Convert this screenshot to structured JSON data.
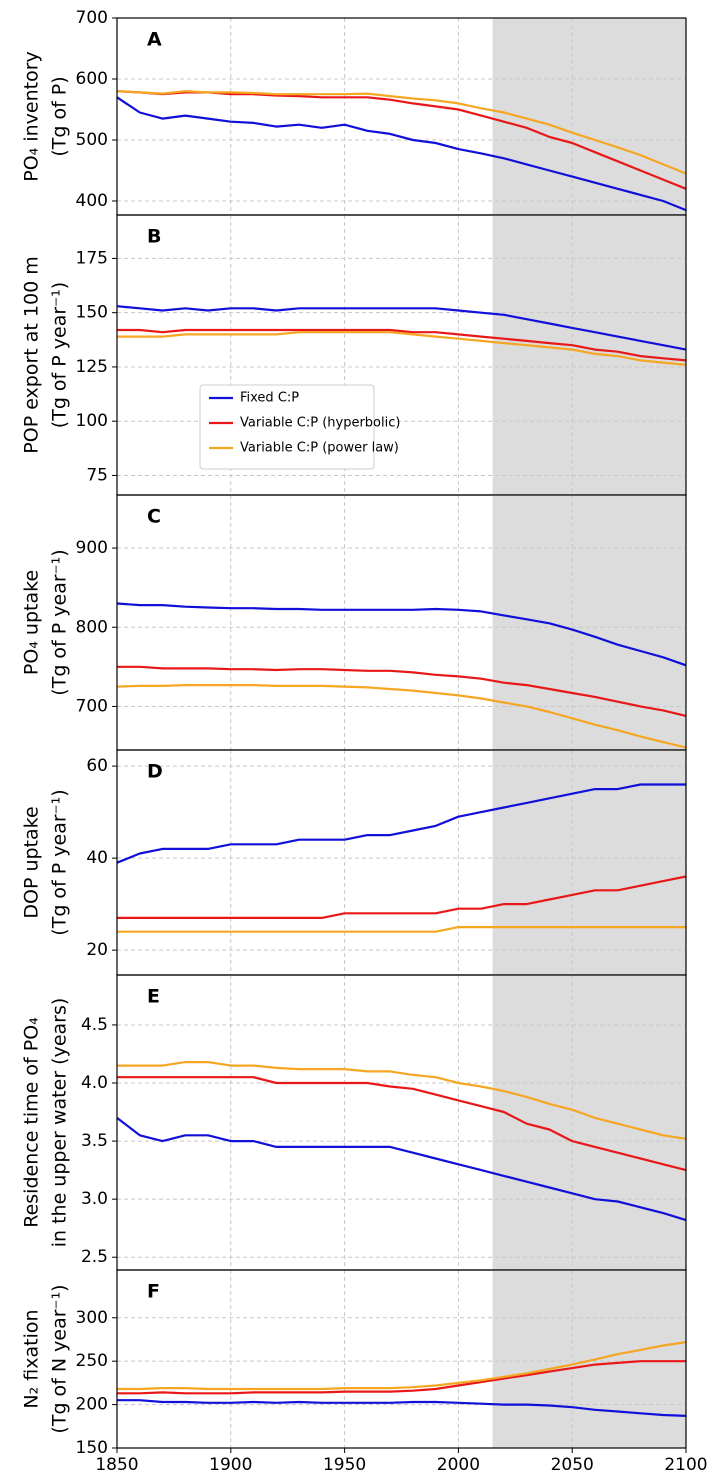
{
  "chart_data": [
    {
      "type": "line",
      "panel_label": "A",
      "ylabel": [
        "PO₄ inventory",
        "(Tg of P)"
      ],
      "x": [
        1850,
        1860,
        1870,
        1880,
        1890,
        1900,
        1910,
        1920,
        1930,
        1940,
        1950,
        1960,
        1970,
        1980,
        1990,
        2000,
        2010,
        2020,
        2030,
        2040,
        2050,
        2060,
        2070,
        2080,
        2090,
        2100
      ],
      "xlim": [
        1850,
        2100
      ],
      "xticks": [
        1850,
        1900,
        1950,
        2000,
        2050,
        2100
      ],
      "ylim": [
        377,
        700
      ],
      "yticks": [
        400,
        500,
        600,
        700
      ],
      "grid": true,
      "shaded_xrange": [
        2015,
        2100
      ],
      "series": [
        {
          "color": "#1010d8",
          "values": [
            570,
            545,
            535,
            540,
            535,
            530,
            528,
            522,
            525,
            520,
            525,
            515,
            510,
            500,
            495,
            485,
            478,
            470,
            460,
            450,
            440,
            430,
            420,
            410,
            400,
            385
          ]
        },
        {
          "color": "#e81818",
          "values": [
            580,
            578,
            575,
            578,
            578,
            575,
            575,
            573,
            572,
            570,
            570,
            570,
            566,
            560,
            555,
            550,
            540,
            530,
            520,
            505,
            495,
            480,
            465,
            450,
            435,
            420
          ]
        },
        {
          "color": "#f5a623",
          "values": [
            580,
            578,
            576,
            580,
            578,
            578,
            577,
            575,
            575,
            575,
            575,
            576,
            572,
            568,
            565,
            560,
            552,
            545,
            535,
            525,
            512,
            500,
            488,
            475,
            460,
            445
          ]
        }
      ]
    },
    {
      "type": "line",
      "panel_label": "B",
      "ylabel": [
        "POP export at 100 m",
        "(Tg of P year⁻¹)"
      ],
      "x": [
        1850,
        1860,
        1870,
        1880,
        1890,
        1900,
        1910,
        1920,
        1930,
        1940,
        1950,
        1960,
        1970,
        1980,
        1990,
        2000,
        2010,
        2020,
        2030,
        2040,
        2050,
        2060,
        2070,
        2080,
        2090,
        2100
      ],
      "xlim": [
        1850,
        2100
      ],
      "xticks": [
        1850,
        1900,
        1950,
        2000,
        2050,
        2100
      ],
      "ylim": [
        66,
        195
      ],
      "yticks": [
        75,
        100,
        125,
        150,
        175
      ],
      "grid": true,
      "shaded_xrange": [
        2015,
        2100
      ],
      "legend": "center-left",
      "series": [
        {
          "name": "Fixed C:P",
          "color": "#1010d8",
          "values": [
            153,
            152,
            151,
            152,
            151,
            152,
            152,
            151,
            152,
            152,
            152,
            152,
            152,
            152,
            152,
            151,
            150,
            149,
            147,
            145,
            143,
            141,
            139,
            137,
            135,
            133
          ]
        },
        {
          "name": "Variable C:P (hyperbolic)",
          "color": "#e81818",
          "values": [
            142,
            142,
            141,
            142,
            142,
            142,
            142,
            142,
            142,
            142,
            142,
            142,
            142,
            141,
            141,
            140,
            139,
            138,
            137,
            136,
            135,
            133,
            132,
            130,
            129,
            128
          ]
        },
        {
          "name": "Variable C:P (power law)",
          "color": "#f5a623",
          "values": [
            139,
            139,
            139,
            140,
            140,
            140,
            140,
            140,
            141,
            141,
            141,
            141,
            141,
            140,
            139,
            138,
            137,
            136,
            135,
            134,
            133,
            131,
            130,
            128,
            127,
            126
          ]
        }
      ]
    },
    {
      "type": "line",
      "panel_label": "C",
      "ylabel": [
        "PO₄ uptake",
        "(Tg of P year⁻¹)"
      ],
      "x": [
        1850,
        1860,
        1870,
        1880,
        1890,
        1900,
        1910,
        1920,
        1930,
        1940,
        1950,
        1960,
        1970,
        1980,
        1990,
        2000,
        2010,
        2020,
        2030,
        2040,
        2050,
        2060,
        2070,
        2080,
        2090,
        2100
      ],
      "xlim": [
        1850,
        2100
      ],
      "xticks": [
        1850,
        1900,
        1950,
        2000,
        2050,
        2100
      ],
      "ylim": [
        645,
        967
      ],
      "yticks": [
        700,
        800,
        900
      ],
      "grid": true,
      "shaded_xrange": [
        2015,
        2100
      ],
      "series": [
        {
          "color": "#1010d8",
          "values": [
            830,
            828,
            828,
            826,
            825,
            824,
            824,
            823,
            823,
            822,
            822,
            822,
            822,
            822,
            823,
            822,
            820,
            815,
            810,
            805,
            797,
            788,
            778,
            770,
            762,
            752
          ]
        },
        {
          "color": "#e81818",
          "values": [
            750,
            750,
            748,
            748,
            748,
            747,
            747,
            746,
            747,
            747,
            746,
            745,
            745,
            743,
            740,
            738,
            735,
            730,
            727,
            722,
            717,
            712,
            706,
            700,
            695,
            688
          ]
        },
        {
          "color": "#f5a623",
          "values": [
            725,
            726,
            726,
            727,
            727,
            727,
            727,
            726,
            726,
            726,
            725,
            724,
            722,
            720,
            717,
            714,
            710,
            705,
            700,
            693,
            685,
            677,
            670,
            662,
            655,
            648
          ]
        }
      ]
    },
    {
      "type": "line",
      "panel_label": "D",
      "ylabel": [
        "DOP uptake",
        "(Tg of P year⁻¹)"
      ],
      "x": [
        1850,
        1860,
        1870,
        1880,
        1890,
        1900,
        1910,
        1920,
        1930,
        1940,
        1950,
        1960,
        1970,
        1980,
        1990,
        2000,
        2010,
        2020,
        2030,
        2040,
        2050,
        2060,
        2070,
        2080,
        2090,
        2100
      ],
      "xlim": [
        1850,
        2100
      ],
      "xticks": [
        1850,
        1900,
        1950,
        2000,
        2050,
        2100
      ],
      "ylim": [
        14.6,
        63.5
      ],
      "yticks": [
        20,
        40,
        60
      ],
      "grid": true,
      "shaded_xrange": [
        2015,
        2100
      ],
      "series": [
        {
          "color": "#1010d8",
          "values": [
            39,
            41,
            42,
            42,
            42,
            43,
            43,
            43,
            44,
            44,
            44,
            45,
            45,
            46,
            47,
            49,
            50,
            51,
            52,
            53,
            54,
            55,
            55,
            56,
            56,
            56
          ]
        },
        {
          "color": "#e81818",
          "values": [
            27,
            27,
            27,
            27,
            27,
            27,
            27,
            27,
            27,
            27,
            28,
            28,
            28,
            28,
            28,
            29,
            29,
            30,
            30,
            31,
            32,
            33,
            33,
            34,
            35,
            36
          ]
        },
        {
          "color": "#f5a623",
          "values": [
            24,
            24,
            24,
            24,
            24,
            24,
            24,
            24,
            24,
            24,
            24,
            24,
            24,
            24,
            24,
            25,
            25,
            25,
            25,
            25,
            25,
            25,
            25,
            25,
            25,
            25
          ]
        }
      ]
    },
    {
      "type": "line",
      "panel_label": "E",
      "ylabel": [
        "Residence time of PO₄",
        "in the upper water (years)"
      ],
      "x": [
        1850,
        1860,
        1870,
        1880,
        1890,
        1900,
        1910,
        1920,
        1930,
        1940,
        1950,
        1960,
        1970,
        1980,
        1990,
        2000,
        2010,
        2020,
        2030,
        2040,
        2050,
        2060,
        2070,
        2080,
        2090,
        2100
      ],
      "xlim": [
        1850,
        2100
      ],
      "xticks": [
        1850,
        1900,
        1950,
        2000,
        2050,
        2100
      ],
      "ylim": [
        2.39,
        4.93
      ],
      "yticks": [
        2.5,
        {
          "value": 3,
          "label": "3.0"
        },
        3.5,
        {
          "value": 4,
          "label": "4.0"
        },
        4.5
      ],
      "grid": true,
      "shaded_xrange": [
        2015,
        2100
      ],
      "series": [
        {
          "color": "#1010d8",
          "values": [
            3.7,
            3.55,
            3.5,
            3.55,
            3.55,
            3.5,
            3.5,
            3.45,
            3.45,
            3.45,
            3.45,
            3.45,
            3.45,
            3.4,
            3.35,
            3.3,
            3.25,
            3.2,
            3.15,
            3.1,
            3.05,
            3.0,
            2.98,
            2.93,
            2.88,
            2.82
          ]
        },
        {
          "color": "#e81818",
          "values": [
            4.05,
            4.05,
            4.05,
            4.05,
            4.05,
            4.05,
            4.05,
            4.0,
            4.0,
            4.0,
            4.0,
            4.0,
            3.97,
            3.95,
            3.9,
            3.85,
            3.8,
            3.75,
            3.65,
            3.6,
            3.5,
            3.45,
            3.4,
            3.35,
            3.3,
            3.25
          ]
        },
        {
          "color": "#f5a623",
          "values": [
            4.15,
            4.15,
            4.15,
            4.18,
            4.18,
            4.15,
            4.15,
            4.13,
            4.12,
            4.12,
            4.12,
            4.1,
            4.1,
            4.07,
            4.05,
            4.0,
            3.97,
            3.93,
            3.88,
            3.82,
            3.77,
            3.7,
            3.65,
            3.6,
            3.55,
            3.52
          ]
        }
      ]
    },
    {
      "type": "line",
      "panel_label": "F",
      "ylabel": [
        "N₂ fixation",
        "(Tg of N year⁻¹)"
      ],
      "x": [
        1850,
        1860,
        1870,
        1880,
        1890,
        1900,
        1910,
        1920,
        1930,
        1940,
        1950,
        1960,
        1970,
        1980,
        1990,
        2000,
        2010,
        2020,
        2030,
        2040,
        2050,
        2060,
        2070,
        2080,
        2090,
        2100
      ],
      "xlim": [
        1850,
        2100
      ],
      "xticks": [
        1850,
        1900,
        1950,
        2000,
        2050,
        2100
      ],
      "xtick_labels_shown": true,
      "ylim": [
        150,
        355
      ],
      "yticks": [
        150,
        200,
        250,
        300
      ],
      "grid": true,
      "shaded_xrange": [
        2015,
        2100
      ],
      "series": [
        {
          "color": "#1010d8",
          "values": [
            205,
            205,
            203,
            203,
            202,
            202,
            203,
            202,
            203,
            202,
            202,
            202,
            202,
            203,
            203,
            202,
            201,
            200,
            200,
            199,
            197,
            194,
            192,
            190,
            188,
            187
          ]
        },
        {
          "color": "#e81818",
          "values": [
            213,
            213,
            214,
            213,
            213,
            213,
            214,
            214,
            214,
            214,
            215,
            215,
            215,
            216,
            218,
            222,
            226,
            230,
            234,
            238,
            242,
            246,
            248,
            250,
            250,
            250
          ]
        },
        {
          "color": "#f5a623",
          "values": [
            218,
            218,
            219,
            219,
            218,
            218,
            218,
            218,
            218,
            218,
            219,
            219,
            219,
            220,
            222,
            225,
            228,
            232,
            236,
            241,
            246,
            252,
            258,
            263,
            268,
            272
          ]
        }
      ]
    }
  ]
}
